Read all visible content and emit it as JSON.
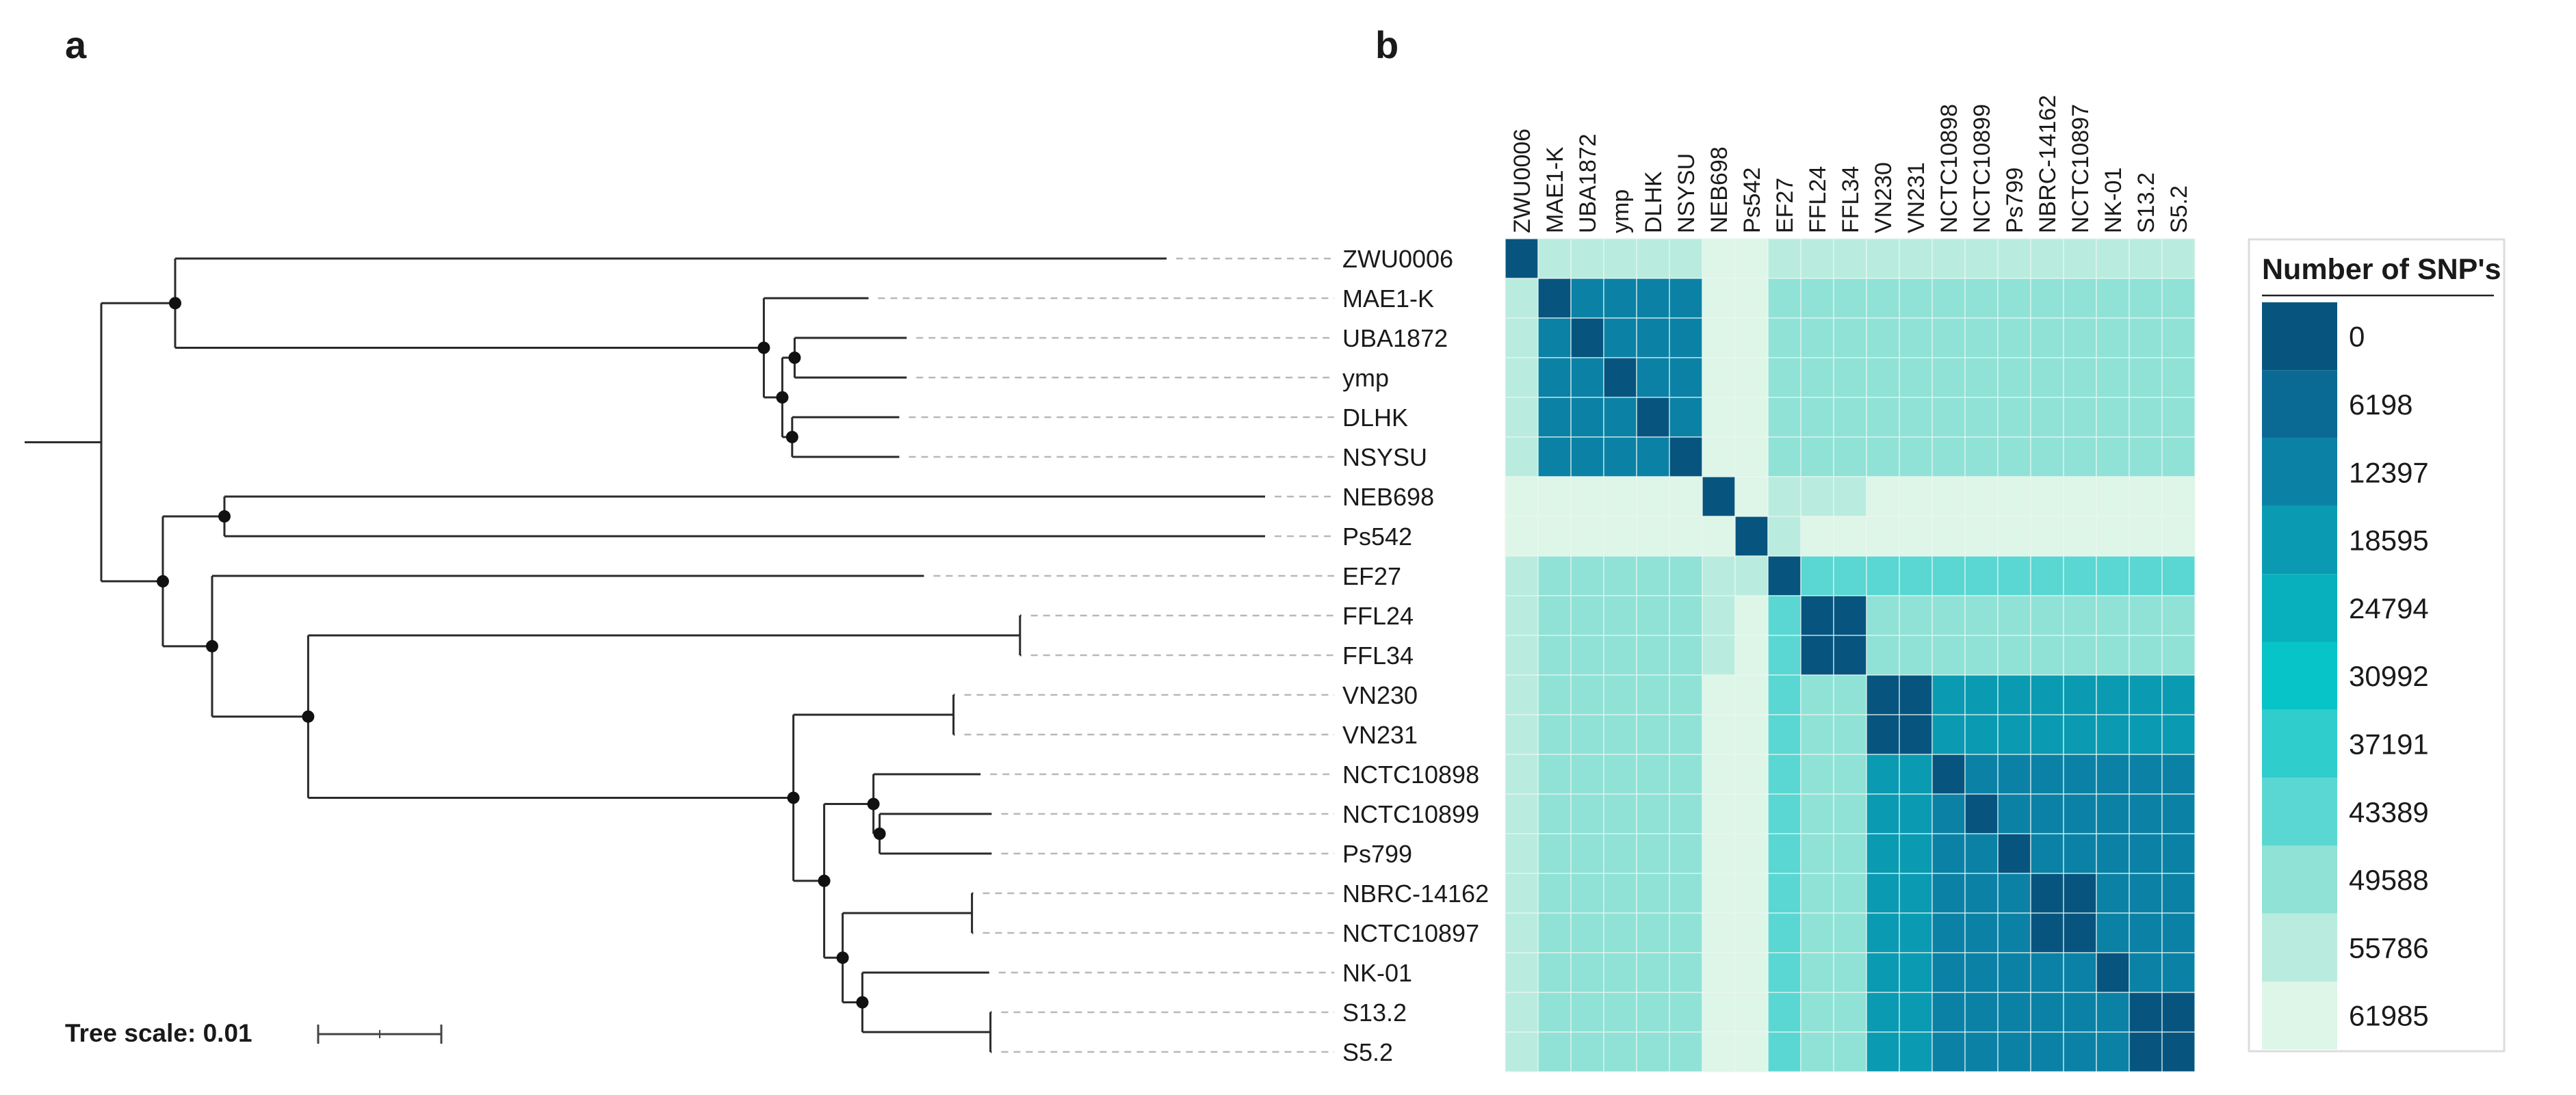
{
  "panels": {
    "a": "a",
    "b": "b"
  },
  "colors": {
    "palette": [
      "#07557f",
      "#0a6a93",
      "#0b82a5",
      "#0a9bb2",
      "#08b0bd",
      "#06c4c8",
      "#2fcdcc",
      "#5ad7d2",
      "#90e2d6",
      "#b9ecde",
      "#ddf6e7"
    ],
    "branch": "#2a2a2a",
    "node": "#111111",
    "guide": "#b8b8b8",
    "grid": "#e9f7f4"
  },
  "chart_data": [
    {
      "type": "tree",
      "panel": "a",
      "tree_scale_label": "Tree scale: 0.01",
      "tips": [
        "ZWU0006",
        "MAE1-K",
        "UBA1872",
        "ymp",
        "DLHK",
        "NSYSU",
        "NEB698",
        "Ps542",
        "EF27",
        "FFL24",
        "FFL34",
        "VN230",
        "VN231",
        "NCTC10898",
        "NCTC10899",
        "Ps799",
        "NBRC-14162",
        "NCTC10897",
        "NK-01",
        "S13.2",
        "S5.2"
      ],
      "newick": "((ZWU0006:0.0805,(MAE1-K:0.0085,((UBA1872:0.0091,ymp:0.0091):0.0010,(DLHK:0.0087,NSYSU:0.0087):0.0008):0.0015):0.0478):0.0060,((NEB698:0.0845,Ps542:0.0845):0.0050,(EF27:0.0578,((FFL24:0.0001,FFL34:0.0001):0.0578,((VN230:0.0001,VN231:0.0001):0.0130,((NCTC10898:0.0087,(NCTC10899:0.0091,Ps799:0.0091):0.0005):0.0040,((NBRC-14162:0.0001,NCTC10897:0.0001):0.0105,(NK-01:0.0103,(S13.2:0.0001,S5.2:0.0001):0.0104):0.0016):0.0015):0.0025):0.0394):0.0078):0.0040):0.0050):0.0030)"
    },
    {
      "type": "heatmap",
      "panel": "b",
      "legend_title": "Number of SNP's",
      "legend_position": "right",
      "labels": [
        "ZWU0006",
        "MAE1-K",
        "UBA1872",
        "ymp",
        "DLHK",
        "NSYSU",
        "NEB698",
        "Ps542",
        "EF27",
        "FFL24",
        "FFL34",
        "VN230",
        "VN231",
        "NCTC10898",
        "NCTC10899",
        "Ps799",
        "NBRC-14162",
        "NCTC10897",
        "NK-01",
        "S13.2",
        "S5.2"
      ],
      "legend_values": [
        0,
        6198,
        12397,
        18595,
        24794,
        30992,
        37191,
        43389,
        49588,
        55786,
        61985
      ],
      "value_range": [
        0,
        61985
      ],
      "values": [
        [
          0,
          53000,
          53000,
          53000,
          53000,
          53000,
          59000,
          59000,
          53000,
          56000,
          56000,
          53000,
          53000,
          53000,
          53000,
          53000,
          53000,
          53000,
          53000,
          53000,
          53000
        ],
        [
          53000,
          0,
          12000,
          12000,
          12000,
          12000,
          59000,
          59000,
          47000,
          51000,
          51000,
          49000,
          49000,
          49000,
          49000,
          49000,
          49000,
          49000,
          49000,
          49000,
          49000
        ],
        [
          53000,
          12000,
          0,
          12000,
          12000,
          12000,
          59000,
          59000,
          47000,
          51000,
          51000,
          49000,
          49000,
          49000,
          49000,
          49000,
          49000,
          49000,
          49000,
          49000,
          49000
        ],
        [
          53000,
          12000,
          12000,
          0,
          12000,
          12000,
          59000,
          59000,
          47000,
          51000,
          51000,
          49000,
          49000,
          49000,
          49000,
          49000,
          49000,
          49000,
          49000,
          49000,
          49000
        ],
        [
          53000,
          12000,
          12000,
          12000,
          0,
          12000,
          59000,
          59000,
          47000,
          51000,
          51000,
          49000,
          49000,
          49000,
          49000,
          49000,
          49000,
          49000,
          49000,
          49000,
          49000
        ],
        [
          53000,
          12000,
          12000,
          12000,
          12000,
          0,
          59000,
          59000,
          47000,
          51000,
          51000,
          49000,
          49000,
          49000,
          49000,
          49000,
          49000,
          49000,
          49000,
          49000,
          49000
        ],
        [
          59000,
          59000,
          59000,
          59000,
          59000,
          59000,
          0,
          60000,
          58000,
          56000,
          56000,
          59000,
          59000,
          59000,
          59000,
          59000,
          59000,
          59000,
          59000,
          59000,
          59000
        ],
        [
          59000,
          59000,
          59000,
          59000,
          59000,
          59000,
          60000,
          0,
          58000,
          59000,
          59000,
          59000,
          59000,
          59000,
          59000,
          59000,
          59000,
          59000,
          59000,
          59000,
          59000
        ],
        [
          53000,
          47000,
          47000,
          47000,
          47000,
          47000,
          58000,
          58000,
          0,
          45000,
          45000,
          45000,
          45000,
          45000,
          45000,
          45000,
          45000,
          45000,
          45000,
          45000,
          45000
        ],
        [
          53000,
          51000,
          51000,
          51000,
          51000,
          51000,
          56000,
          59000,
          45000,
          0,
          500,
          49000,
          49000,
          49000,
          49000,
          49000,
          49000,
          49000,
          49000,
          49000,
          49000
        ],
        [
          53000,
          51000,
          51000,
          51000,
          51000,
          51000,
          56000,
          59000,
          45000,
          500,
          0,
          49000,
          49000,
          49000,
          49000,
          49000,
          49000,
          49000,
          49000,
          49000,
          49000
        ],
        [
          53000,
          49000,
          49000,
          49000,
          49000,
          49000,
          59000,
          59000,
          45000,
          49000,
          49000,
          0,
          500,
          20000,
          20000,
          20000,
          20000,
          20000,
          20000,
          20000,
          20000
        ],
        [
          53000,
          49000,
          49000,
          49000,
          49000,
          49000,
          59000,
          59000,
          45000,
          49000,
          49000,
          500,
          0,
          20000,
          20000,
          20000,
          20000,
          20000,
          20000,
          20000,
          20000
        ],
        [
          53000,
          49000,
          49000,
          49000,
          49000,
          49000,
          59000,
          59000,
          45000,
          49000,
          49000,
          20000,
          20000,
          0,
          14000,
          14000,
          14000,
          14000,
          14000,
          14000,
          14000
        ],
        [
          53000,
          49000,
          49000,
          49000,
          49000,
          49000,
          59000,
          59000,
          45000,
          49000,
          49000,
          20000,
          20000,
          14000,
          0,
          12000,
          14000,
          14000,
          14000,
          14000,
          14000
        ],
        [
          53000,
          49000,
          49000,
          49000,
          49000,
          49000,
          59000,
          59000,
          45000,
          49000,
          49000,
          20000,
          20000,
          14000,
          12000,
          0,
          14000,
          14000,
          14000,
          14000,
          14000
        ],
        [
          53000,
          49000,
          49000,
          49000,
          49000,
          49000,
          59000,
          59000,
          45000,
          49000,
          49000,
          20000,
          20000,
          14000,
          14000,
          14000,
          0,
          500,
          14000,
          14000,
          14000
        ],
        [
          53000,
          49000,
          49000,
          49000,
          49000,
          49000,
          59000,
          59000,
          45000,
          49000,
          49000,
          20000,
          20000,
          14000,
          14000,
          14000,
          500,
          0,
          14000,
          14000,
          14000
        ],
        [
          53000,
          49000,
          49000,
          49000,
          49000,
          49000,
          59000,
          59000,
          45000,
          49000,
          49000,
          20000,
          20000,
          14000,
          14000,
          14000,
          14000,
          14000,
          0,
          12000,
          12000
        ],
        [
          53000,
          49000,
          49000,
          49000,
          49000,
          49000,
          59000,
          59000,
          45000,
          49000,
          49000,
          20000,
          20000,
          14000,
          14000,
          14000,
          14000,
          14000,
          12000,
          0,
          500
        ],
        [
          53000,
          49000,
          49000,
          49000,
          49000,
          49000,
          59000,
          59000,
          45000,
          49000,
          49000,
          20000,
          20000,
          14000,
          14000,
          14000,
          14000,
          14000,
          12000,
          500,
          0
        ]
      ]
    }
  ]
}
